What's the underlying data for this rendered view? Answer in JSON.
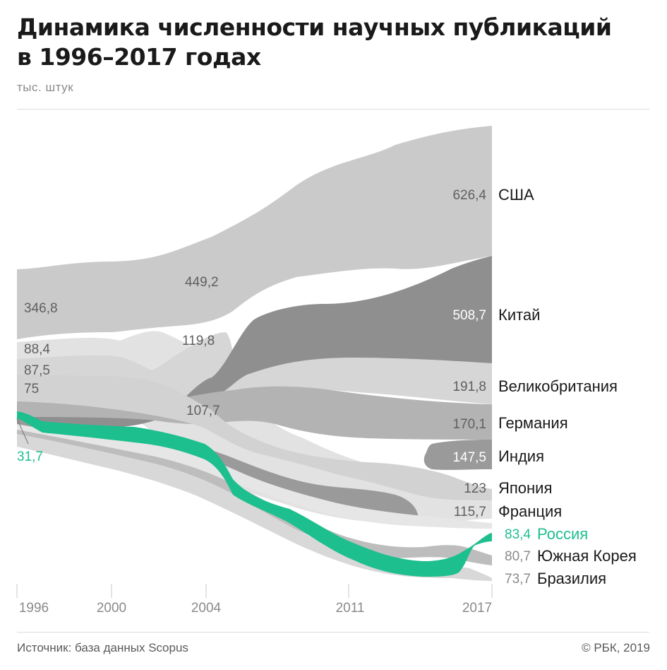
{
  "title_line1": "Динамика численности научных публикаций",
  "title_line2": "в 1996–2017 годах",
  "subtitle": "тыс. штук",
  "source": "Источник: база данных Scopus",
  "copyright": "© РБК, 2019",
  "colors": {
    "highlight": "#1dbf8f",
    "text": "#1a1a1a",
    "muted": "#8a8a8a",
    "background": "#ffffff"
  },
  "chart_data": {
    "type": "area",
    "subtitle": "тыс. штук",
    "x_ticks": [
      "1996",
      "2000",
      "2004",
      "2011",
      "2017"
    ],
    "series": [
      {
        "name": "США",
        "value_1996": "346,8",
        "value_mid": "449,2",
        "value_2017": "626,4",
        "color": "#cacaca"
      },
      {
        "name": "Китай",
        "value_1996": "31,7",
        "value_mid": "",
        "value_2017": "508,7",
        "color": "#8f8f8f"
      },
      {
        "name": "Великобритания",
        "value_1996": "88,4",
        "value_mid": "119,8",
        "value_2017": "191,8",
        "color": "#e2e2e2"
      },
      {
        "name": "Германия",
        "value_1996": "87,5",
        "value_mid": "",
        "value_2017": "170,1",
        "color": "#b3b3b3"
      },
      {
        "name": "Индия",
        "value_1996": "",
        "value_mid": "",
        "value_2017": "147,5",
        "color": "#9a9a9a"
      },
      {
        "name": "Япония",
        "value_1996": "75",
        "value_mid": "107,7",
        "value_2017": "123",
        "color": "#d2d2d2"
      },
      {
        "name": "Франция",
        "value_1996": "",
        "value_mid": "",
        "value_2017": "115,7",
        "color": "#e6e6e6"
      },
      {
        "name": "Россия",
        "value_1996": "31,7",
        "value_mid": "",
        "value_2017": "83,4",
        "color": "#1dbf8f"
      },
      {
        "name": "Южная Корея",
        "value_1996": "",
        "value_mid": "",
        "value_2017": "80,7",
        "color": "#bdbdbd"
      },
      {
        "name": "Бразилия",
        "value_1996": "",
        "value_mid": "",
        "value_2017": "73,7",
        "color": "#d8d8d8"
      }
    ]
  }
}
